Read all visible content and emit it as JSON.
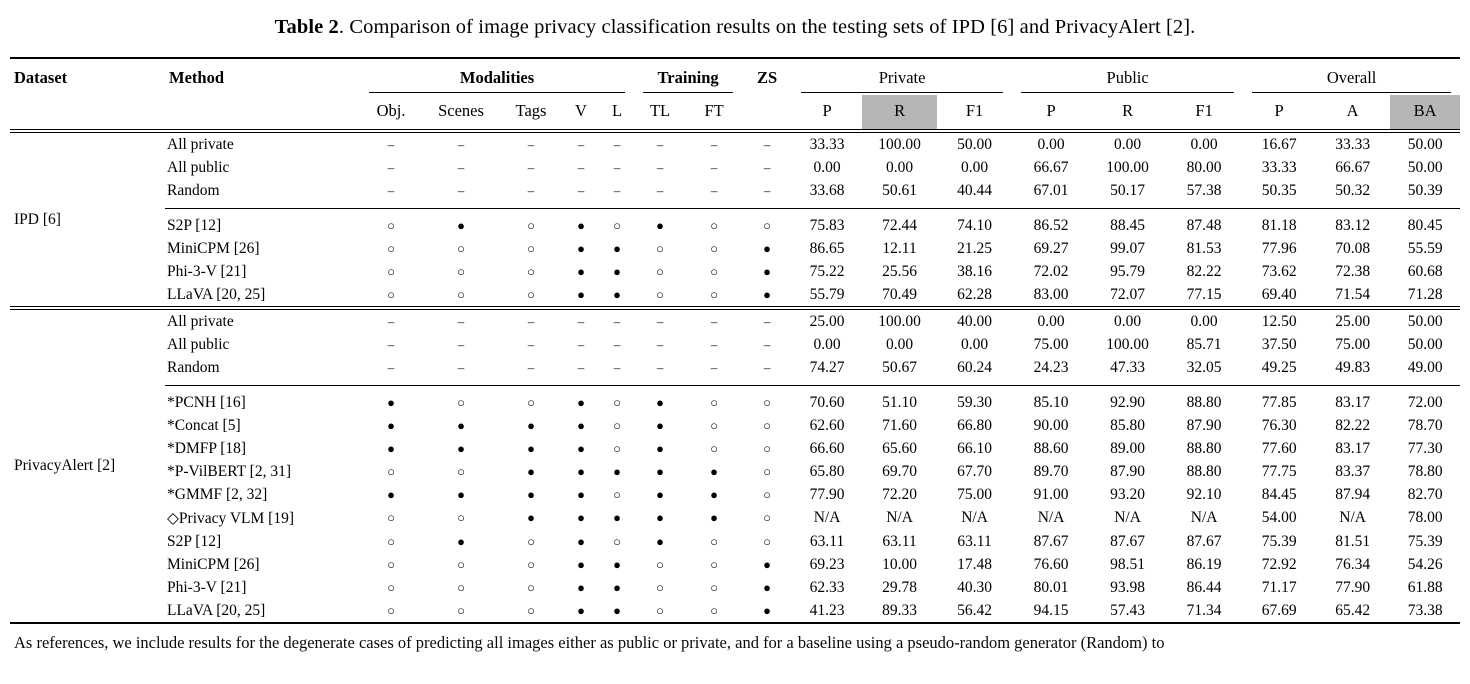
{
  "caption": {
    "label": "Table 2",
    "text": ". Comparison of image privacy classification results on the testing sets of IPD [6] and PrivacyAlert [2]."
  },
  "footnote": "As references, we include results for the degenerate cases of predicting all images either as public or private, and for a baseline using a pseudo-random generator (Random) to",
  "table": {
    "col_dataset": "Dataset",
    "col_method": "Method",
    "highlight_color": "#b6b6b6",
    "marks_legend": {
      "-": "–",
      "o": "○",
      "f": "●"
    },
    "groups": [
      {
        "id": "modalities",
        "label": "Modalities",
        "bold": true,
        "underline": true,
        "cols": [
          "Obj.",
          "Scenes",
          "Tags",
          "V",
          "L"
        ],
        "highlight": []
      },
      {
        "id": "training",
        "label": "Training",
        "bold": true,
        "underline": true,
        "cols": [
          "TL",
          "FT"
        ],
        "highlight": []
      },
      {
        "id": "zs",
        "label": "ZS",
        "bold": true,
        "underline": false,
        "cols": [],
        "highlight": []
      },
      {
        "id": "private",
        "label": "Private",
        "bold": false,
        "underline": true,
        "cols": [
          "P",
          "R",
          "F1"
        ],
        "highlight": [
          1
        ]
      },
      {
        "id": "public",
        "label": "Public",
        "bold": false,
        "underline": true,
        "cols": [
          "P",
          "R",
          "F1"
        ],
        "highlight": []
      },
      {
        "id": "overall",
        "label": "Overall",
        "bold": false,
        "underline": true,
        "cols": [
          "P",
          "A",
          "BA"
        ],
        "highlight": [
          2
        ]
      }
    ],
    "sections": [
      {
        "dataset": "IPD [6]",
        "row_groups": [
          {
            "name": "baselines",
            "rows": [
              {
                "method": "All private",
                "marks": [
                  "-",
                  "-",
                  "-",
                  "-",
                  "-",
                  "-",
                  "-",
                  "-"
                ],
                "values": [
                  "33.33",
                  "100.00",
                  "50.00",
                  "0.00",
                  "0.00",
                  "0.00",
                  "16.67",
                  "33.33",
                  "50.00"
                ]
              },
              {
                "method": "All public",
                "marks": [
                  "-",
                  "-",
                  "-",
                  "-",
                  "-",
                  "-",
                  "-",
                  "-"
                ],
                "values": [
                  "0.00",
                  "0.00",
                  "0.00",
                  "66.67",
                  "100.00",
                  "80.00",
                  "33.33",
                  "66.67",
                  "50.00"
                ]
              },
              {
                "method": "Random",
                "marks": [
                  "-",
                  "-",
                  "-",
                  "-",
                  "-",
                  "-",
                  "-",
                  "-"
                ],
                "values": [
                  "33.68",
                  "50.61",
                  "40.44",
                  "67.01",
                  "50.17",
                  "57.38",
                  "50.35",
                  "50.32",
                  "50.39"
                ]
              }
            ]
          },
          {
            "name": "methods",
            "rows": [
              {
                "method": "S2P [12]",
                "marks": [
                  "o",
                  "f",
                  "o",
                  "f",
                  "o",
                  "f",
                  "o",
                  "o"
                ],
                "values": [
                  "75.83",
                  "72.44",
                  "74.10",
                  "86.52",
                  "88.45",
                  "87.48",
                  "81.18",
                  "83.12",
                  "80.45"
                ]
              },
              {
                "method": "MiniCPM [26]",
                "marks": [
                  "o",
                  "o",
                  "o",
                  "f",
                  "f",
                  "o",
                  "o",
                  "f"
                ],
                "values": [
                  "86.65",
                  "12.11",
                  "21.25",
                  "69.27",
                  "99.07",
                  "81.53",
                  "77.96",
                  "70.08",
                  "55.59"
                ]
              },
              {
                "method": "Phi-3-V [21]",
                "marks": [
                  "o",
                  "o",
                  "o",
                  "f",
                  "f",
                  "o",
                  "o",
                  "f"
                ],
                "values": [
                  "75.22",
                  "25.56",
                  "38.16",
                  "72.02",
                  "95.79",
                  "82.22",
                  "73.62",
                  "72.38",
                  "60.68"
                ]
              },
              {
                "method": "LLaVA [20, 25]",
                "marks": [
                  "o",
                  "o",
                  "o",
                  "f",
                  "f",
                  "o",
                  "o",
                  "f"
                ],
                "values": [
                  "55.79",
                  "70.49",
                  "62.28",
                  "83.00",
                  "72.07",
                  "77.15",
                  "69.40",
                  "71.54",
                  "71.28"
                ]
              }
            ]
          }
        ]
      },
      {
        "dataset": "PrivacyAlert [2]",
        "row_groups": [
          {
            "name": "baselines",
            "rows": [
              {
                "method": "All private",
                "marks": [
                  "-",
                  "-",
                  "-",
                  "-",
                  "-",
                  "-",
                  "-",
                  "-"
                ],
                "values": [
                  "25.00",
                  "100.00",
                  "40.00",
                  "0.00",
                  "0.00",
                  "0.00",
                  "12.50",
                  "25.00",
                  "50.00"
                ]
              },
              {
                "method": "All public",
                "marks": [
                  "-",
                  "-",
                  "-",
                  "-",
                  "-",
                  "-",
                  "-",
                  "-"
                ],
                "values": [
                  "0.00",
                  "0.00",
                  "0.00",
                  "75.00",
                  "100.00",
                  "85.71",
                  "37.50",
                  "75.00",
                  "50.00"
                ]
              },
              {
                "method": "Random",
                "marks": [
                  "-",
                  "-",
                  "-",
                  "-",
                  "-",
                  "-",
                  "-",
                  "-"
                ],
                "values": [
                  "74.27",
                  "50.67",
                  "60.24",
                  "24.23",
                  "47.33",
                  "32.05",
                  "49.25",
                  "49.83",
                  "49.00"
                ]
              }
            ]
          },
          {
            "name": "methods",
            "rows": [
              {
                "method": "*PCNH [16]",
                "marks": [
                  "f",
                  "o",
                  "o",
                  "f",
                  "o",
                  "f",
                  "o",
                  "o"
                ],
                "values": [
                  "70.60",
                  "51.10",
                  "59.30",
                  "85.10",
                  "92.90",
                  "88.80",
                  "77.85",
                  "83.17",
                  "72.00"
                ]
              },
              {
                "method": "*Concat [5]",
                "marks": [
                  "f",
                  "f",
                  "f",
                  "f",
                  "o",
                  "f",
                  "o",
                  "o"
                ],
                "values": [
                  "62.60",
                  "71.60",
                  "66.80",
                  "90.00",
                  "85.80",
                  "87.90",
                  "76.30",
                  "82.22",
                  "78.70"
                ]
              },
              {
                "method": "*DMFP [18]",
                "marks": [
                  "f",
                  "f",
                  "f",
                  "f",
                  "o",
                  "f",
                  "o",
                  "o"
                ],
                "values": [
                  "66.60",
                  "65.60",
                  "66.10",
                  "88.60",
                  "89.00",
                  "88.80",
                  "77.60",
                  "83.17",
                  "77.30"
                ]
              },
              {
                "method": "*P-VilBERT [2, 31]",
                "marks": [
                  "o",
                  "o",
                  "f",
                  "f",
                  "f",
                  "f",
                  "f",
                  "o"
                ],
                "values": [
                  "65.80",
                  "69.70",
                  "67.70",
                  "89.70",
                  "87.90",
                  "88.80",
                  "77.75",
                  "83.37",
                  "78.80"
                ]
              },
              {
                "method": "*GMMF [2, 32]",
                "marks": [
                  "f",
                  "f",
                  "f",
                  "f",
                  "o",
                  "f",
                  "f",
                  "o"
                ],
                "values": [
                  "77.90",
                  "72.20",
                  "75.00",
                  "91.00",
                  "93.20",
                  "92.10",
                  "84.45",
                  "87.94",
                  "82.70"
                ]
              },
              {
                "method": "◇Privacy VLM [19]",
                "marks": [
                  "o",
                  "o",
                  "f",
                  "f",
                  "f",
                  "f",
                  "f",
                  "o"
                ],
                "values": [
                  "N/A",
                  "N/A",
                  "N/A",
                  "N/A",
                  "N/A",
                  "N/A",
                  "54.00",
                  "N/A",
                  "78.00"
                ]
              },
              {
                "method": "S2P [12]",
                "marks": [
                  "o",
                  "f",
                  "o",
                  "f",
                  "o",
                  "f",
                  "o",
                  "o"
                ],
                "values": [
                  "63.11",
                  "63.11",
                  "63.11",
                  "87.67",
                  "87.67",
                  "87.67",
                  "75.39",
                  "81.51",
                  "75.39"
                ]
              },
              {
                "method": "MiniCPM [26]",
                "marks": [
                  "o",
                  "o",
                  "o",
                  "f",
                  "f",
                  "o",
                  "o",
                  "f"
                ],
                "values": [
                  "69.23",
                  "10.00",
                  "17.48",
                  "76.60",
                  "98.51",
                  "86.19",
                  "72.92",
                  "76.34",
                  "54.26"
                ]
              },
              {
                "method": "Phi-3-V [21]",
                "marks": [
                  "o",
                  "o",
                  "o",
                  "f",
                  "f",
                  "o",
                  "o",
                  "f"
                ],
                "values": [
                  "62.33",
                  "29.78",
                  "40.30",
                  "80.01",
                  "93.98",
                  "86.44",
                  "71.17",
                  "77.90",
                  "61.88"
                ]
              },
              {
                "method": "LLaVA [20, 25]",
                "marks": [
                  "o",
                  "o",
                  "o",
                  "f",
                  "f",
                  "o",
                  "o",
                  "f"
                ],
                "values": [
                  "41.23",
                  "89.33",
                  "56.42",
                  "94.15",
                  "57.43",
                  "71.34",
                  "67.69",
                  "65.42",
                  "73.38"
                ]
              }
            ]
          }
        ]
      }
    ]
  }
}
